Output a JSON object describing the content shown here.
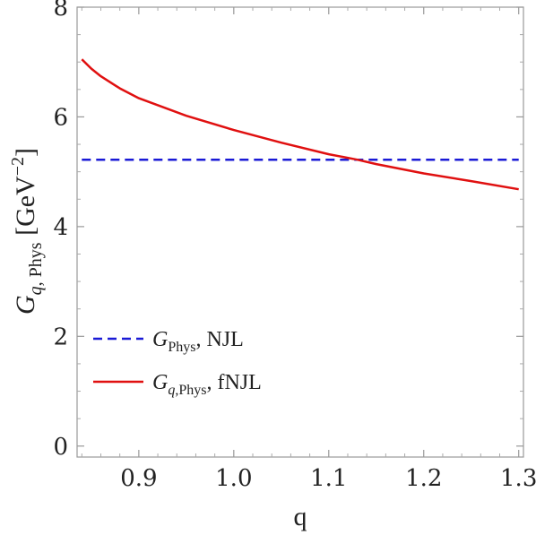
{
  "chart_data": {
    "type": "line",
    "xlabel": "q",
    "ylabel": {
      "main": "G",
      "sub_italic": "q",
      "sub_rest": ", Phys",
      "unit_open": " [GeV",
      "unit_exp": "−2",
      "unit_close": "]"
    },
    "xlim": [
      0.835,
      1.305
    ],
    "ylim": [
      -0.2,
      8.0
    ],
    "x_ticks": [
      0.9,
      1.0,
      1.1,
      1.2,
      1.3
    ],
    "x_tick_labels": [
      "0.9",
      "1.0",
      "1.1",
      "1.2",
      "1.3"
    ],
    "y_ticks": [
      0,
      2,
      4,
      6,
      8
    ],
    "y_tick_labels": [
      "0",
      "2",
      "4",
      "6",
      "8"
    ],
    "grid": false,
    "legend_position": "bottom-left",
    "series": [
      {
        "key": "njl",
        "legend": {
          "main": "G",
          "sub": "Phys",
          "tail": ", NJL"
        },
        "color": "#1a1ad6",
        "dash": "dashed",
        "x": [
          0.84,
          1.3
        ],
        "y": [
          5.22,
          5.22
        ]
      },
      {
        "key": "fnjl",
        "legend": {
          "main": "G",
          "sub_italic": "q",
          "sub": ",Phys",
          "tail": ", fNJL"
        },
        "color": "#e01010",
        "dash": "solid",
        "x": [
          0.84,
          0.85,
          0.86,
          0.88,
          0.9,
          0.95,
          1.0,
          1.05,
          1.1,
          1.13,
          1.15,
          1.2,
          1.25,
          1.3
        ],
        "y": [
          7.05,
          6.88,
          6.74,
          6.52,
          6.34,
          6.02,
          5.76,
          5.53,
          5.32,
          5.22,
          5.14,
          4.97,
          4.83,
          4.68
        ]
      }
    ]
  }
}
